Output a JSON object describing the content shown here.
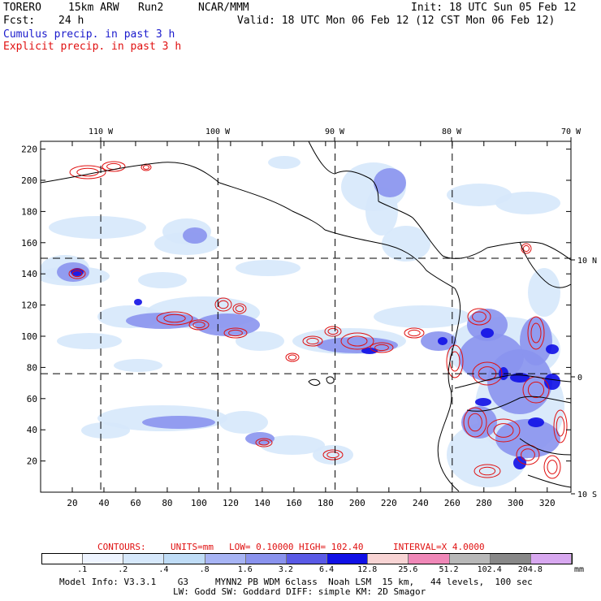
{
  "header": {
    "model": "TORERO",
    "resolution": "15km ARW",
    "run": "Run2",
    "org": "NCAR/MMM",
    "init": "Init: 18 UTC Sun 05 Feb 12",
    "fcst_label": "Fcst:",
    "fcst_value": "24 h",
    "valid": "Valid: 18 UTC Mon 06 Feb 12 (12 CST Mon 06 Feb 12)",
    "line_cumulus": "Cumulus precip. in past 3 h",
    "line_explicit": "Explicit precip. in past 3 h"
  },
  "map": {
    "top_lon_labels": [
      "110 W",
      "100 W",
      "90 W",
      "80 W",
      "70 W"
    ],
    "right_lat_labels": [
      "10 N",
      "0",
      "10 S"
    ]
  },
  "contour_info": {
    "contours": "CONTOURS:",
    "units": "UNITS=mm",
    "low": "LOW= 0.10000",
    "high": "HIGH= 102.40",
    "interval": "INTERVAL=X 4.0000"
  },
  "colorbar": {
    "unit": "mm",
    "colors": [
      "#ffffff",
      "#eef4ff",
      "#d6e8fb",
      "#bfdcf6",
      "#a7b4f4",
      "#8a93ee",
      "#5a5ae6",
      "#1010e6",
      "#f8d4d4",
      "#f088b8",
      "#b8b8b8",
      "#888888",
      "#d8a8f0"
    ],
    "labels": [
      ".1",
      ".2",
      ".4",
      ".8",
      "1.6",
      "3.2",
      "6.4",
      "12.8",
      "25.6",
      "51.2",
      "102.4",
      "204.8"
    ]
  },
  "footer": {
    "line1": "Model Info: V3.3.1    G3     MYNN2 PB WDM 6class  Noah LSM  15 km,   44 levels,  100 sec",
    "line2": "LW: Godd SW: Goddard DIFF: simple KM: 2D Smagor"
  },
  "chart_data": {
    "type": "heatmap",
    "title": "Cumulus precip. in past 3 h / Explicit precip. in past 3 h",
    "units": "mm",
    "x_axis": {
      "range": [
        0,
        335
      ],
      "ticks": [
        20,
        40,
        60,
        80,
        100,
        120,
        140,
        160,
        180,
        200,
        220,
        240,
        260,
        280,
        300,
        320
      ]
    },
    "y_axis": {
      "range": [
        0,
        225
      ],
      "ticks": [
        20,
        40,
        60,
        80,
        100,
        120,
        140,
        160,
        180,
        200,
        220
      ]
    },
    "grid_lines": {
      "x": [
        38,
        112,
        186,
        260
      ],
      "y": [
        76,
        150
      ]
    },
    "contour_levels_mm": {
      "low": 0.1,
      "high": 102.4,
      "interval_factor": 4.0
    },
    "color_levels_mm": [
      0.1,
      0.2,
      0.4,
      0.8,
      1.6,
      3.2,
      6.4,
      12.8,
      25.6,
      51.2,
      102.4,
      204.8
    ]
  }
}
